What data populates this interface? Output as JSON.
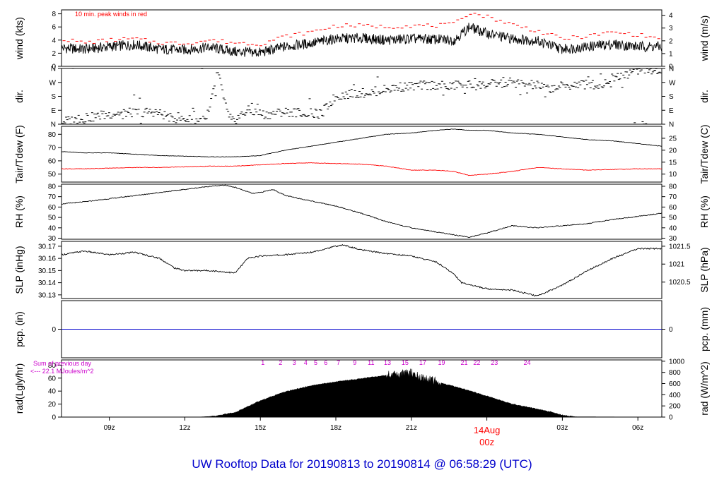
{
  "title": "UW Rooftop Data for 20190813  to  20190814 @ 06:58:29  (UTC)",
  "time_axis": {
    "tick_labels": [
      "09z",
      "12z",
      "15z",
      "18z",
      "21z",
      "03z",
      "06z"
    ],
    "tick_hours": [
      9,
      12,
      15,
      18,
      21,
      27,
      30
    ],
    "range_hours": [
      7.1,
      30.95
    ],
    "day_label": "14Aug",
    "day_hour_label": "00z",
    "day_hour": 24
  },
  "chart_data": [
    {
      "type": "line",
      "name": "wind",
      "ylabel_left": "wind (kts)",
      "ylabel_right": "wind (m/s)",
      "yticks_left": [
        0,
        2,
        4,
        6,
        8
      ],
      "yticks_right": [
        0,
        1,
        2,
        3,
        4
      ],
      "ylim": [
        0,
        8.6
      ],
      "annotation": "10 min. peak winds in red",
      "x_hours": [
        7.1,
        8,
        9,
        10,
        11,
        12,
        13,
        14,
        15,
        16,
        17,
        18,
        19,
        20,
        21,
        22,
        22.7,
        23.3,
        24,
        25,
        26,
        27,
        28,
        29,
        30,
        30.95
      ],
      "mean_kts": [
        2.8,
        2.6,
        3.0,
        3.3,
        2.6,
        2.5,
        2.9,
        2.2,
        2.1,
        3.0,
        3.5,
        4.2,
        4.3,
        4.0,
        4.2,
        4.1,
        4.0,
        6.0,
        5.0,
        4.2,
        3.9,
        2.6,
        3.0,
        3.4,
        3.0,
        3.0
      ],
      "peak_kts": [
        4.2,
        3.6,
        4.0,
        4.2,
        3.6,
        3.5,
        4.0,
        3.6,
        3.4,
        4.6,
        5.2,
        6.2,
        6.2,
        6.0,
        6.2,
        6.2,
        6.4,
        8.2,
        7.6,
        6.4,
        5.4,
        4.2,
        4.6,
        5.2,
        4.8,
        4.2
      ]
    },
    {
      "type": "scatter",
      "name": "dir.",
      "ylabel": "dir.",
      "yticks": [
        "N",
        "E",
        "S",
        "W",
        "N"
      ],
      "ylim": [
        0,
        360
      ],
      "x_hours": [
        7.2,
        7.8,
        8.5,
        9.2,
        10.0,
        10.8,
        11.5,
        12.2,
        12.9,
        13.3,
        13.8,
        14.5,
        15.2,
        15.9,
        16.6,
        17.4,
        18.0,
        18.5,
        19.0,
        19.5,
        20.0,
        20.5,
        21.0,
        21.5,
        22.0,
        22.5,
        23.0,
        23.5,
        24.0,
        24.5,
        25.0,
        25.5,
        26.0,
        26.5,
        27.0,
        27.5,
        28.0,
        28.5,
        29.0,
        29.5,
        30.0,
        30.5,
        30.9
      ],
      "deg": [
        20,
        30,
        50,
        70,
        75,
        80,
        40,
        30,
        25,
        340,
        5,
        90,
        60,
        80,
        75,
        65,
        180,
        195,
        200,
        210,
        225,
        240,
        245,
        250,
        255,
        240,
        260,
        250,
        255,
        265,
        270,
        260,
        250,
        230,
        245,
        255,
        265,
        245,
        300,
        330,
        350,
        345,
        340
      ]
    },
    {
      "type": "line",
      "name": "Tair/Tdew",
      "ylabel_left": "Tair/Tdew (F)",
      "ylabel_right": "Tair/Tdew (C)",
      "yticks_left": [
        50,
        60,
        70,
        80
      ],
      "yticks_right": [
        10,
        15,
        20,
        25
      ],
      "ylim": [
        44,
        86
      ],
      "x_hours": [
        7.1,
        8,
        9,
        10,
        11,
        12,
        13,
        14,
        15,
        16,
        17,
        18,
        19,
        20,
        21,
        22,
        22.7,
        23.3,
        24,
        25,
        26,
        27,
        28,
        29,
        30,
        30.95
      ],
      "temp_f": [
        67,
        66,
        66,
        65,
        64,
        63.5,
        63,
        63,
        64,
        68,
        71,
        74,
        77,
        80,
        81,
        83,
        84,
        83,
        83,
        81,
        80,
        78,
        76,
        75,
        73,
        71
      ],
      "dew_f": [
        54,
        54,
        54.5,
        55,
        55,
        55.5,
        56,
        56,
        57,
        58,
        58.5,
        58,
        57.5,
        56,
        53,
        53,
        52,
        49,
        50,
        52,
        55,
        54,
        53,
        53.5,
        54,
        54
      ]
    },
    {
      "type": "line",
      "name": "RH",
      "ylabel_left": "RH (%)",
      "ylabel_right": "RH (%)",
      "yticks": [
        30,
        40,
        50,
        60,
        70,
        80
      ],
      "ylim": [
        29,
        82
      ],
      "x_hours": [
        7.1,
        8,
        9,
        10,
        11,
        12,
        13,
        13.6,
        14,
        14.7,
        15,
        15.5,
        16,
        17,
        18,
        19,
        20,
        21,
        22,
        23,
        23.3,
        24,
        25,
        26,
        27,
        28,
        29,
        30,
        30.95
      ],
      "values": [
        63,
        65,
        68,
        71,
        74,
        77,
        80,
        81,
        79,
        73,
        74,
        77,
        71,
        66,
        61,
        54,
        46,
        40,
        36,
        32,
        31,
        35,
        42,
        40,
        42,
        44,
        48,
        51,
        54
      ]
    },
    {
      "type": "line",
      "name": "SLP",
      "ylabel_left": "SLP (inHg)",
      "ylabel_right": "SLP (hPa)",
      "yticks_left": [
        30.13,
        30.14,
        30.15,
        30.16,
        30.17
      ],
      "yticks_right": [
        "1020.5",
        "1021",
        "1021.5"
      ],
      "yticks_right_inhg": [
        30.1405,
        30.1553,
        30.17
      ],
      "ylim": [
        30.127,
        30.174
      ],
      "x_hours": [
        7.1,
        8,
        9,
        10,
        11,
        11.6,
        12,
        13,
        14,
        14.5,
        15,
        16,
        17,
        18,
        18.3,
        19,
        20,
        21,
        22,
        22.7,
        23,
        24,
        25,
        26,
        27,
        28,
        29,
        30,
        30.95
      ],
      "values": [
        30.163,
        30.166,
        30.163,
        30.165,
        30.16,
        30.152,
        30.15,
        30.15,
        30.148,
        30.16,
        30.162,
        30.163,
        30.165,
        30.17,
        30.171,
        30.167,
        30.164,
        30.162,
        30.157,
        30.147,
        30.14,
        30.135,
        30.134,
        30.129,
        30.138,
        30.15,
        30.16,
        30.168,
        30.168
      ]
    },
    {
      "type": "line",
      "name": "pcp.",
      "ylabel_left": "pcp. (in)",
      "ylabel_right": "pcp. (mm)",
      "yticks_left": [
        0
      ],
      "yticks_right": [
        0
      ],
      "ylim": [
        -1,
        1
      ],
      "x_hours": [
        7.1,
        30.95
      ],
      "values": [
        0,
        0
      ]
    },
    {
      "type": "area",
      "name": "rad",
      "ylabel_left": "rad(Lgly/hr)",
      "ylabel_right": "rad (W/m^2)",
      "yticks_left": [
        0,
        20,
        40,
        60,
        80
      ],
      "yticks_right": [
        0,
        200,
        400,
        600,
        800,
        1000
      ],
      "ylim": [
        0,
        88
      ],
      "note_line1": "Sum of previous day",
      "note_line2": "<--- 22.1 MJoules/m^2",
      "hour_markers": [
        "1",
        "2",
        "3",
        "4",
        "5",
        "6",
        "7",
        "9",
        "11",
        "13",
        "15",
        "17",
        "19",
        "21",
        "22",
        "23",
        "24"
      ],
      "hour_marker_hours": [
        15.1,
        15.8,
        16.35,
        16.8,
        17.2,
        17.6,
        18.1,
        18.75,
        19.4,
        20.05,
        20.75,
        21.45,
        22.2,
        23.1,
        23.6,
        24.3,
        25.6
      ],
      "x_hours": [
        7.1,
        12.5,
        13.0,
        14.0,
        15.0,
        16.0,
        17.0,
        18.0,
        19.0,
        20.0,
        20.5,
        21.0,
        21.5,
        22.0,
        23.0,
        24.0,
        25.0,
        26.0,
        26.5,
        27.0,
        27.5,
        30.95
      ],
      "values": [
        0,
        0,
        1,
        8,
        26,
        40,
        49,
        55,
        60,
        65,
        66,
        68,
        58,
        55,
        45,
        33,
        21,
        13,
        9,
        4,
        0.5,
        0
      ]
    }
  ],
  "colors": {
    "axis": "#000000",
    "peak_wind": "#ff0000",
    "dewpoint": "#ff0000",
    "precip": "#0000cc",
    "title": "#0000cc",
    "date_label": "#ff0000",
    "radiation_markers": "#cc00cc",
    "radiation_note": "#cc00cc"
  }
}
